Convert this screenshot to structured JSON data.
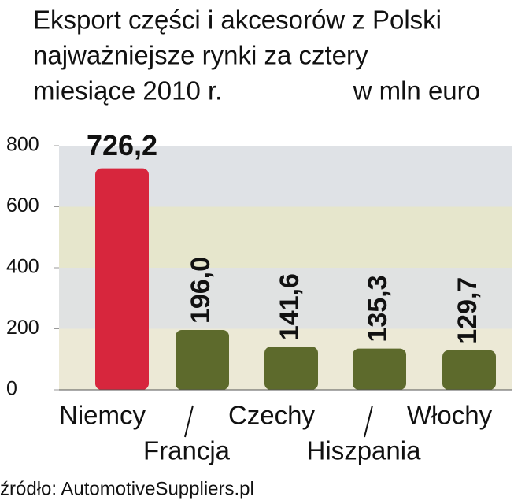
{
  "chart_data": {
    "type": "bar",
    "title": [
      "Eksport części i akcesorów z Polski",
      "najważniejsze rynki za cztery",
      "miesiące 2010 r."
    ],
    "unit": "w mln euro",
    "categories": [
      "Niemcy",
      "Francja",
      "Czechy",
      "Hiszpania",
      "Włochy"
    ],
    "values": [
      726.2,
      196.0,
      141.6,
      135.3,
      129.7
    ],
    "value_labels": [
      "726,2",
      "196,0",
      "141,6",
      "135,3",
      "129,7"
    ],
    "colors": [
      "#d7263d",
      "#5d6a2c",
      "#5d6a2c",
      "#5d6a2c",
      "#5d6a2c"
    ],
    "ylim": [
      0,
      800
    ],
    "yticks": [
      0,
      200,
      400,
      600,
      800
    ],
    "source": "źródło: AutomotiveSuppliers.pl"
  }
}
